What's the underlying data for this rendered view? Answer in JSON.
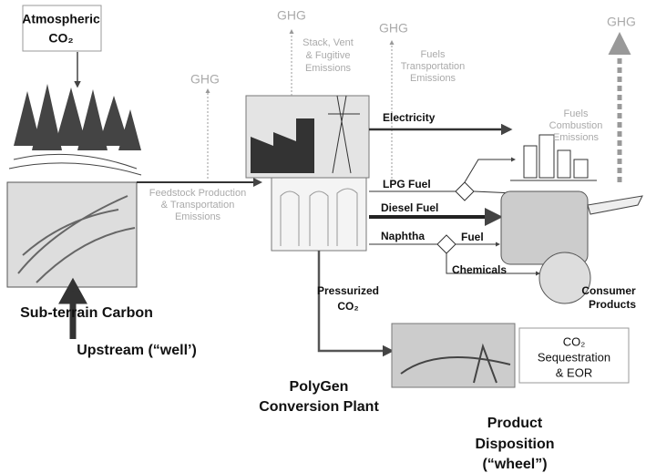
{
  "atmospheric_co2": [
    "Atmospheric",
    "CO₂"
  ],
  "ghg": [
    "GHG",
    "GHG",
    "GHG",
    "GHG"
  ],
  "emissions": {
    "feedstock": [
      "Feedstock Production",
      "& Transportation",
      "Emissions"
    ],
    "stack": [
      "Stack, Vent",
      "& Fugitive",
      "Emissions"
    ],
    "transportation": [
      "Fuels",
      "Transportation",
      "Emissions"
    ],
    "combustion": [
      "Fuels",
      "Combustion",
      "Emissions"
    ]
  },
  "products": {
    "electricity": "Electricity",
    "lpg": "LPG Fuel",
    "diesel": "Diesel Fuel",
    "naphtha": "Naphtha",
    "fuel": "Fuel",
    "chemicals": "Chemicals",
    "consumer": [
      "Consumer",
      "Products"
    ]
  },
  "pressurized_co2": [
    "Pressurized",
    "CO₂"
  ],
  "sequestration": [
    "CO₂",
    "Sequestration",
    "& EOR"
  ],
  "subterrain_carbon": "Sub-terrain Carbon",
  "upstream": "Upstream (“well’)",
  "polygen": [
    "PolyGen",
    "Conversion Plant"
  ],
  "product_disposition": [
    "Product",
    "Disposition",
    "(“wheel”)"
  ]
}
